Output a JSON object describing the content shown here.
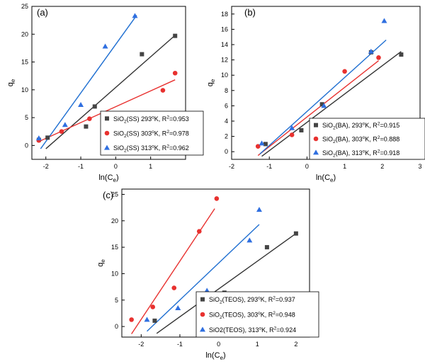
{
  "colors": {
    "black": "#333333",
    "red": "#e8312f",
    "blue": "#1f6fd1",
    "sq": "#444444",
    "circ": "#e8312f",
    "tri": "#2f6fe0"
  },
  "chart_data": [
    {
      "type": "scatter",
      "panel_label": "(a)",
      "xlabel_main": "ln(C",
      "xlabel_sub": "e",
      "xlabel_end": ")",
      "ylabel_main": "q",
      "ylabel_sub": "e",
      "xlim": [
        -2.4,
        2.0
      ],
      "ylim": [
        -2.5,
        25
      ],
      "xticks": [
        -2,
        -1,
        0,
        1
      ],
      "yticks": [
        0,
        5,
        10,
        15,
        20,
        25
      ],
      "legend_position": "bottom-right",
      "series": [
        {
          "marker": "square",
          "color": "#444444",
          "line_color": "#333333",
          "legend_main": "SiO",
          "legend_sub": "2",
          "legend_rest": "(SS) 293",
          "legend_sup": "o",
          "legend_end": "K, R",
          "legend_sup2": "2",
          "legend_val": "=0.953",
          "x": [
            -2.2,
            -1.95,
            -0.85,
            -0.6,
            0.75,
            1.7
          ],
          "y": [
            1.0,
            1.4,
            3.4,
            7.0,
            16.4,
            19.7
          ],
          "fit": [
            [
              -2.0,
              -0.6
            ],
            [
              1.7,
              19.8
            ]
          ]
        },
        {
          "marker": "circle",
          "color": "#e8312f",
          "line_color": "#e8312f",
          "legend_main": "SiO",
          "legend_sub": "2",
          "legend_rest": "(SS) 303",
          "legend_sup": "o",
          "legend_end": "K, R",
          "legend_sup2": "2",
          "legend_val": "=0.978",
          "x": [
            -2.2,
            -1.55,
            -0.75,
            1.35,
            1.7
          ],
          "y": [
            0.9,
            2.5,
            4.8,
            9.9,
            13.0
          ],
          "fit": [
            [
              -2.2,
              0.7
            ],
            [
              1.7,
              11.8
            ]
          ]
        },
        {
          "marker": "triangle",
          "color": "#2f6fe0",
          "line_color": "#1f6fd1",
          "legend_main": "SiO",
          "legend_sub": "2",
          "legend_rest": "(SS) 313",
          "legend_sup": "o",
          "legend_end": "K, R",
          "legend_sup2": "2",
          "legend_val": "=0.962",
          "x": [
            -2.2,
            -1.45,
            -1.0,
            -0.3,
            0.55
          ],
          "y": [
            1.3,
            3.7,
            7.3,
            17.8,
            23.3
          ],
          "fit": [
            [
              -2.15,
              -0.6
            ],
            [
              0.6,
              23.4
            ]
          ]
        }
      ]
    },
    {
      "type": "scatter",
      "panel_label": "(b)",
      "xlabel_main": "ln(C",
      "xlabel_sub": "e",
      "xlabel_end": ")",
      "ylabel_main": "q",
      "ylabel_sub": "e",
      "xlim": [
        -2,
        3
      ],
      "ylim": [
        -1,
        19
      ],
      "xticks": [
        -2,
        -1,
        0,
        1,
        2,
        3
      ],
      "yticks": [
        0,
        2,
        4,
        6,
        8,
        10,
        12,
        14,
        16,
        18
      ],
      "legend_position": "bottom-right",
      "series": [
        {
          "marker": "square",
          "color": "#444444",
          "line_color": "#333333",
          "legend_main": "SiO",
          "legend_sub": "2",
          "legend_rest": "(BA), 293",
          "legend_sup": "o",
          "legend_end": "K, R",
          "legend_sup2": "2",
          "legend_val": "=0.915",
          "x": [
            -1.1,
            -0.15,
            0.4,
            1.7,
            2.5
          ],
          "y": [
            1.0,
            2.8,
            6.2,
            13.0,
            12.7
          ],
          "fit": [
            [
              -1.2,
              -0.6
            ],
            [
              2.5,
              13.1
            ]
          ]
        },
        {
          "marker": "circle",
          "color": "#e8312f",
          "line_color": "#e8312f",
          "legend_main": "SiO",
          "legend_sub": "2",
          "legend_rest": "(BA), 303",
          "legend_sup": "o",
          "legend_end": "K, R",
          "legend_sup2": "2",
          "legend_val": "=0.888",
          "x": [
            -1.3,
            -0.4,
            0.35,
            1.0,
            1.9
          ],
          "y": [
            0.7,
            2.2,
            4.1,
            10.5,
            12.3
          ],
          "fit": [
            [
              -1.3,
              -0.5
            ],
            [
              1.9,
              11.9
            ]
          ]
        },
        {
          "marker": "triangle",
          "color": "#2f6fe0",
          "line_color": "#1f6fd1",
          "legend_main": "SiO",
          "legend_sub": "2",
          "legend_rest": "(BA), 313",
          "legend_sup": "o",
          "legend_end": "K, R",
          "legend_sup2": "2",
          "legend_val": "=0.918",
          "x": [
            -1.2,
            -0.4,
            0.45,
            1.7,
            2.05
          ],
          "y": [
            1.1,
            3.1,
            6.0,
            13.1,
            17.1
          ],
          "fit": [
            [
              -1.25,
              -0.3
            ],
            [
              2.1,
              14.6
            ]
          ]
        }
      ]
    },
    {
      "type": "scatter",
      "panel_label": "(c)",
      "xlabel_main": "ln(C",
      "xlabel_sub": "e",
      "xlabel_end": ")",
      "ylabel_main": "q",
      "ylabel_sub": "e",
      "xlim": [
        -2.5,
        2.35
      ],
      "ylim": [
        -2,
        26
      ],
      "xticks": [
        -2,
        -1,
        0,
        1,
        2
      ],
      "yticks": [
        0,
        5,
        10,
        15,
        20,
        25
      ],
      "legend_position": "bottom-right",
      "series": [
        {
          "marker": "square",
          "color": "#444444",
          "line_color": "#333333",
          "legend_main": "SiO",
          "legend_sub": "2",
          "legend_rest": "(TEOS), 293",
          "legend_sup": "o",
          "legend_end": "K, R",
          "legend_sup2": "2",
          "legend_val": "=0.937",
          "x": [
            -1.65,
            -0.35,
            0.15,
            1.25,
            2.0
          ],
          "y": [
            1.1,
            3.2,
            6.4,
            15.0,
            17.6
          ],
          "fit": [
            [
              -1.6,
              -1.3
            ],
            [
              2.0,
              17.6
            ]
          ]
        },
        {
          "marker": "circle",
          "color": "#e8312f",
          "line_color": "#e8312f",
          "legend_main": "SiO",
          "legend_sub": "2",
          "legend_rest": "(TEOS), 303",
          "legend_sup": "o",
          "legend_end": "K, R",
          "legend_sup2": "2",
          "legend_val": "=0.948",
          "x": [
            -2.25,
            -1.7,
            -1.15,
            -0.5,
            -0.05
          ],
          "y": [
            1.3,
            3.7,
            7.3,
            18.0,
            24.2
          ],
          "fit": [
            [
              -2.25,
              -1.4
            ],
            [
              -0.1,
              22.3
            ]
          ]
        },
        {
          "marker": "triangle",
          "color": "#2f6fe0",
          "line_color": "#1f6fd1",
          "legend_main": "SiO2(TEOS), 313",
          "legend_sub": "",
          "legend_rest": "",
          "legend_sup": "o",
          "legend_end": "K, R",
          "legend_sup2": "2",
          "legend_val": "=0.924",
          "x": [
            -1.85,
            -1.05,
            -0.3,
            0.8,
            1.05
          ],
          "y": [
            1.3,
            3.5,
            6.8,
            16.3,
            22.1
          ],
          "fit": [
            [
              -1.85,
              -0.9
            ],
            [
              1.05,
              19.3
            ]
          ]
        }
      ]
    }
  ]
}
